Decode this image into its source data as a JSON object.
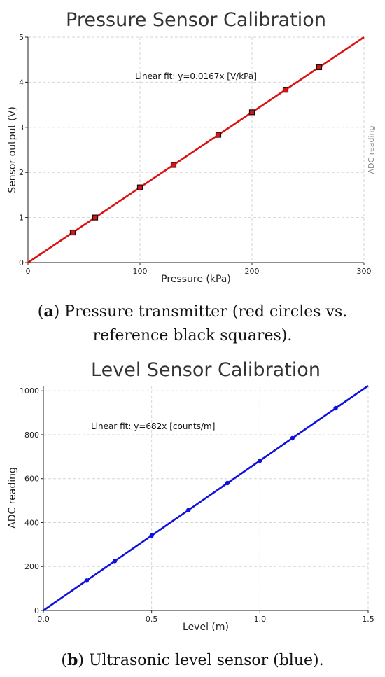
{
  "chart_data": [
    {
      "type": "line",
      "title": "Pressure Sensor Calibration",
      "xlabel": "Pressure (kPa)",
      "ylabel": "Sensor output (V)",
      "right_label": "ADC reading",
      "xlim": [
        0,
        300
      ],
      "ylim": [
        0,
        5
      ],
      "xticks": [
        "0",
        "100",
        "200",
        "300"
      ],
      "yticks": [
        "0",
        "1",
        "2",
        "3",
        "4",
        "5"
      ],
      "grid": true,
      "annotation": "Linear fit: y=0.0167x [V/kPa]",
      "line_color": "#dd1111",
      "marker_color": "#dd1111",
      "marker_edge": "#111111",
      "fit": {
        "x": [
          0,
          300
        ],
        "y": [
          0,
          5.0
        ]
      },
      "points": {
        "x": [
          40,
          60,
          100,
          130,
          170,
          200,
          230,
          260
        ],
        "y": [
          0.667,
          1.0,
          1.667,
          2.167,
          2.833,
          3.333,
          3.833,
          4.333
        ]
      }
    },
    {
      "type": "line",
      "title": "Level Sensor Calibration",
      "xlabel": "Level (m)",
      "ylabel": "ADC reading",
      "xlim": [
        0,
        1.5
      ],
      "ylim": [
        0,
        1023
      ],
      "xticks": [
        "0.0",
        "0.5",
        "1.0",
        "1.5"
      ],
      "yticks": [
        "0",
        "200",
        "400",
        "600",
        "800",
        "1000"
      ],
      "grid": true,
      "annotation": "Linear fit: y=682x [counts/m]",
      "line_color": "#1111dd",
      "marker_color": "#1111dd",
      "fit": {
        "x": [
          0,
          1.5
        ],
        "y": [
          0,
          1023
        ]
      },
      "points": {
        "x": [
          0.2,
          0.33,
          0.5,
          0.67,
          0.85,
          1.0,
          1.15,
          1.35
        ],
        "y": [
          136,
          225,
          341,
          457,
          580,
          682,
          784,
          921
        ]
      }
    }
  ],
  "captions": {
    "a_label": "a",
    "a_text_line1": ") Pressure transmitter (red circles vs.",
    "a_text_line2": "reference black squares).",
    "b_label": "b",
    "b_text": ") Ultrasonic level sensor (blue)."
  }
}
